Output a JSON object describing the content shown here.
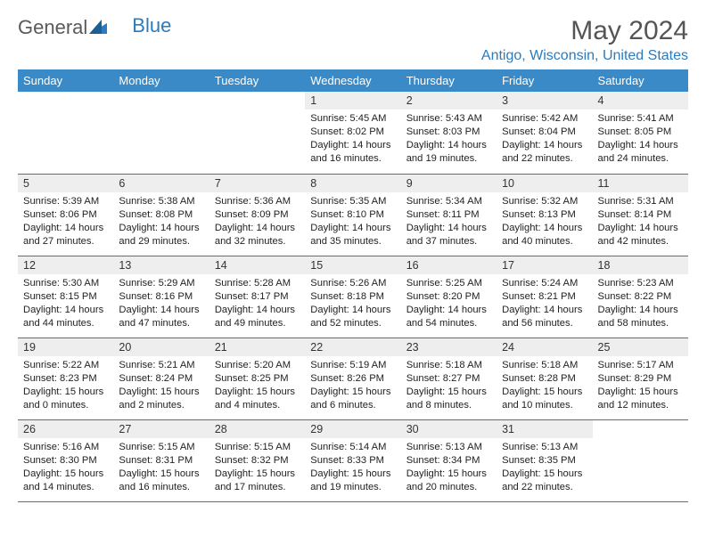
{
  "logo": {
    "text1": "General",
    "text2": "Blue"
  },
  "title": "May 2024",
  "location": "Antigo, Wisconsin, United States",
  "colors": {
    "header_bg": "#3a8ac8",
    "header_fg": "#ffffff",
    "accent": "#2a7bbf",
    "daynum_bg": "#eeeeee",
    "text": "#222222",
    "title_color": "#555555"
  },
  "day_headers": [
    "Sunday",
    "Monday",
    "Tuesday",
    "Wednesday",
    "Thursday",
    "Friday",
    "Saturday"
  ],
  "weeks": [
    [
      {
        "n": "",
        "lines": []
      },
      {
        "n": "",
        "lines": []
      },
      {
        "n": "",
        "lines": []
      },
      {
        "n": "1",
        "lines": [
          "Sunrise: 5:45 AM",
          "Sunset: 8:02 PM",
          "Daylight: 14 hours",
          "and 16 minutes."
        ]
      },
      {
        "n": "2",
        "lines": [
          "Sunrise: 5:43 AM",
          "Sunset: 8:03 PM",
          "Daylight: 14 hours",
          "and 19 minutes."
        ]
      },
      {
        "n": "3",
        "lines": [
          "Sunrise: 5:42 AM",
          "Sunset: 8:04 PM",
          "Daylight: 14 hours",
          "and 22 minutes."
        ]
      },
      {
        "n": "4",
        "lines": [
          "Sunrise: 5:41 AM",
          "Sunset: 8:05 PM",
          "Daylight: 14 hours",
          "and 24 minutes."
        ]
      }
    ],
    [
      {
        "n": "5",
        "lines": [
          "Sunrise: 5:39 AM",
          "Sunset: 8:06 PM",
          "Daylight: 14 hours",
          "and 27 minutes."
        ]
      },
      {
        "n": "6",
        "lines": [
          "Sunrise: 5:38 AM",
          "Sunset: 8:08 PM",
          "Daylight: 14 hours",
          "and 29 minutes."
        ]
      },
      {
        "n": "7",
        "lines": [
          "Sunrise: 5:36 AM",
          "Sunset: 8:09 PM",
          "Daylight: 14 hours",
          "and 32 minutes."
        ]
      },
      {
        "n": "8",
        "lines": [
          "Sunrise: 5:35 AM",
          "Sunset: 8:10 PM",
          "Daylight: 14 hours",
          "and 35 minutes."
        ]
      },
      {
        "n": "9",
        "lines": [
          "Sunrise: 5:34 AM",
          "Sunset: 8:11 PM",
          "Daylight: 14 hours",
          "and 37 minutes."
        ]
      },
      {
        "n": "10",
        "lines": [
          "Sunrise: 5:32 AM",
          "Sunset: 8:13 PM",
          "Daylight: 14 hours",
          "and 40 minutes."
        ]
      },
      {
        "n": "11",
        "lines": [
          "Sunrise: 5:31 AM",
          "Sunset: 8:14 PM",
          "Daylight: 14 hours",
          "and 42 minutes."
        ]
      }
    ],
    [
      {
        "n": "12",
        "lines": [
          "Sunrise: 5:30 AM",
          "Sunset: 8:15 PM",
          "Daylight: 14 hours",
          "and 44 minutes."
        ]
      },
      {
        "n": "13",
        "lines": [
          "Sunrise: 5:29 AM",
          "Sunset: 8:16 PM",
          "Daylight: 14 hours",
          "and 47 minutes."
        ]
      },
      {
        "n": "14",
        "lines": [
          "Sunrise: 5:28 AM",
          "Sunset: 8:17 PM",
          "Daylight: 14 hours",
          "and 49 minutes."
        ]
      },
      {
        "n": "15",
        "lines": [
          "Sunrise: 5:26 AM",
          "Sunset: 8:18 PM",
          "Daylight: 14 hours",
          "and 52 minutes."
        ]
      },
      {
        "n": "16",
        "lines": [
          "Sunrise: 5:25 AM",
          "Sunset: 8:20 PM",
          "Daylight: 14 hours",
          "and 54 minutes."
        ]
      },
      {
        "n": "17",
        "lines": [
          "Sunrise: 5:24 AM",
          "Sunset: 8:21 PM",
          "Daylight: 14 hours",
          "and 56 minutes."
        ]
      },
      {
        "n": "18",
        "lines": [
          "Sunrise: 5:23 AM",
          "Sunset: 8:22 PM",
          "Daylight: 14 hours",
          "and 58 minutes."
        ]
      }
    ],
    [
      {
        "n": "19",
        "lines": [
          "Sunrise: 5:22 AM",
          "Sunset: 8:23 PM",
          "Daylight: 15 hours",
          "and 0 minutes."
        ]
      },
      {
        "n": "20",
        "lines": [
          "Sunrise: 5:21 AM",
          "Sunset: 8:24 PM",
          "Daylight: 15 hours",
          "and 2 minutes."
        ]
      },
      {
        "n": "21",
        "lines": [
          "Sunrise: 5:20 AM",
          "Sunset: 8:25 PM",
          "Daylight: 15 hours",
          "and 4 minutes."
        ]
      },
      {
        "n": "22",
        "lines": [
          "Sunrise: 5:19 AM",
          "Sunset: 8:26 PM",
          "Daylight: 15 hours",
          "and 6 minutes."
        ]
      },
      {
        "n": "23",
        "lines": [
          "Sunrise: 5:18 AM",
          "Sunset: 8:27 PM",
          "Daylight: 15 hours",
          "and 8 minutes."
        ]
      },
      {
        "n": "24",
        "lines": [
          "Sunrise: 5:18 AM",
          "Sunset: 8:28 PM",
          "Daylight: 15 hours",
          "and 10 minutes."
        ]
      },
      {
        "n": "25",
        "lines": [
          "Sunrise: 5:17 AM",
          "Sunset: 8:29 PM",
          "Daylight: 15 hours",
          "and 12 minutes."
        ]
      }
    ],
    [
      {
        "n": "26",
        "lines": [
          "Sunrise: 5:16 AM",
          "Sunset: 8:30 PM",
          "Daylight: 15 hours",
          "and 14 minutes."
        ]
      },
      {
        "n": "27",
        "lines": [
          "Sunrise: 5:15 AM",
          "Sunset: 8:31 PM",
          "Daylight: 15 hours",
          "and 16 minutes."
        ]
      },
      {
        "n": "28",
        "lines": [
          "Sunrise: 5:15 AM",
          "Sunset: 8:32 PM",
          "Daylight: 15 hours",
          "and 17 minutes."
        ]
      },
      {
        "n": "29",
        "lines": [
          "Sunrise: 5:14 AM",
          "Sunset: 8:33 PM",
          "Daylight: 15 hours",
          "and 19 minutes."
        ]
      },
      {
        "n": "30",
        "lines": [
          "Sunrise: 5:13 AM",
          "Sunset: 8:34 PM",
          "Daylight: 15 hours",
          "and 20 minutes."
        ]
      },
      {
        "n": "31",
        "lines": [
          "Sunrise: 5:13 AM",
          "Sunset: 8:35 PM",
          "Daylight: 15 hours",
          "and 22 minutes."
        ]
      },
      {
        "n": "",
        "lines": []
      }
    ]
  ]
}
